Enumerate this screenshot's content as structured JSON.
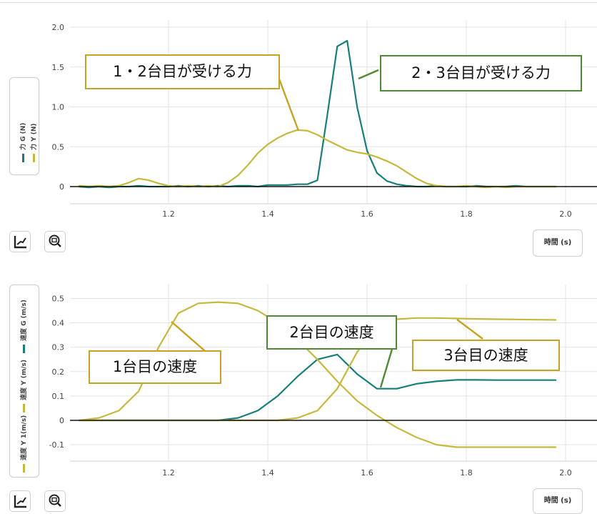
{
  "colors": {
    "teal": "#177f7a",
    "olive": "#c4b93b",
    "annot_gold": "#c8a321",
    "annot_green": "#4f8a36",
    "grid": "#e3e3e3",
    "zero_line": "#111111"
  },
  "icons": {
    "fit": "axis-fit-icon",
    "zoom": "zoom-icon"
  },
  "chart_data": [
    {
      "type": "line",
      "xlabel": "時間 (s)",
      "xlim": [
        1.02,
        2.02
      ],
      "ylim": [
        -0.03,
        2.0
      ],
      "x_ticks": [
        "1.2",
        "1.4",
        "1.6",
        "1.8",
        "2.0"
      ],
      "y_ticks": [
        "2.0",
        "1.5",
        "1.0",
        "0.5",
        "0"
      ],
      "legend": [
        "力 G (N)",
        "力 Y (N)"
      ],
      "grid": true,
      "series": [
        {
          "name": "力 G (N)",
          "color": "#177f7a",
          "x": [
            1.02,
            1.04,
            1.06,
            1.08,
            1.1,
            1.12,
            1.14,
            1.16,
            1.18,
            1.2,
            1.22,
            1.24,
            1.26,
            1.28,
            1.3,
            1.32,
            1.34,
            1.36,
            1.38,
            1.4,
            1.42,
            1.44,
            1.46,
            1.48,
            1.5,
            1.52,
            1.54,
            1.56,
            1.58,
            1.6,
            1.62,
            1.64,
            1.66,
            1.68,
            1.7,
            1.72,
            1.74,
            1.76,
            1.78,
            1.8,
            1.82,
            1.84,
            1.86,
            1.88,
            1.9,
            1.92,
            1.94,
            1.96,
            1.98
          ],
          "y": [
            0.0,
            -0.01,
            0.0,
            -0.01,
            0.0,
            0.0,
            0.01,
            0.0,
            0.0,
            0.0,
            0.01,
            0.0,
            0.01,
            0.0,
            0.01,
            0.0,
            0.01,
            0.01,
            0.0,
            0.02,
            0.02,
            0.02,
            0.03,
            0.03,
            0.08,
            0.9,
            1.76,
            1.83,
            1.0,
            0.45,
            0.17,
            0.07,
            0.03,
            0.01,
            0.0,
            0.0,
            0.01,
            0.0,
            0.0,
            0.0,
            0.01,
            0.0,
            0.0,
            0.0,
            0.01,
            0.0,
            0.0,
            0.0,
            0.0
          ]
        },
        {
          "name": "力 Y (N)",
          "color": "#c4b93b",
          "x": [
            1.02,
            1.04,
            1.06,
            1.08,
            1.1,
            1.12,
            1.14,
            1.16,
            1.18,
            1.2,
            1.22,
            1.24,
            1.26,
            1.28,
            1.3,
            1.32,
            1.34,
            1.36,
            1.38,
            1.4,
            1.42,
            1.44,
            1.46,
            1.48,
            1.5,
            1.52,
            1.54,
            1.56,
            1.58,
            1.6,
            1.62,
            1.64,
            1.66,
            1.68,
            1.7,
            1.72,
            1.74,
            1.76,
            1.78,
            1.8,
            1.82,
            1.84,
            1.86,
            1.88,
            1.9,
            1.92,
            1.94,
            1.96,
            1.98
          ],
          "y": [
            0.01,
            0.0,
            0.01,
            0.0,
            0.01,
            0.05,
            0.1,
            0.08,
            0.04,
            0.01,
            0.0,
            0.01,
            0.0,
            0.01,
            0.0,
            0.05,
            0.14,
            0.27,
            0.42,
            0.53,
            0.61,
            0.67,
            0.71,
            0.7,
            0.65,
            0.58,
            0.52,
            0.46,
            0.43,
            0.41,
            0.37,
            0.32,
            0.26,
            0.18,
            0.1,
            0.04,
            0.01,
            0.0,
            0.0,
            0.01,
            0.0,
            -0.01,
            0.0,
            -0.01,
            0.0,
            0.0,
            0.0,
            0.0,
            0.0
          ]
        }
      ],
      "annotations": [
        {
          "text": "1・2台目が受ける力",
          "color": "#c8a321"
        },
        {
          "text": "2・3台目が受ける力",
          "color": "#4f8a36"
        }
      ]
    },
    {
      "type": "line",
      "xlabel": "時間 (s)",
      "xlim": [
        1.02,
        2.02
      ],
      "ylim": [
        -0.16,
        0.52
      ],
      "x_ticks": [
        "1.2",
        "1.4",
        "1.6",
        "1.8",
        "2.0"
      ],
      "y_ticks": [
        "0.5",
        "0.4",
        "0.3",
        "0.2",
        "0.1",
        "0",
        "-0.1"
      ],
      "legend": [
        "速度 G (m/s)",
        "速度 Y (m/s)",
        "速度 Y 1(m/s)"
      ],
      "grid": true,
      "series": [
        {
          "name": "速度 G (m/s)",
          "color": "#177f7a",
          "x": [
            1.02,
            1.06,
            1.1,
            1.14,
            1.18,
            1.22,
            1.26,
            1.3,
            1.34,
            1.38,
            1.42,
            1.46,
            1.5,
            1.54,
            1.58,
            1.62,
            1.66,
            1.7,
            1.74,
            1.78,
            1.82,
            1.86,
            1.9,
            1.94,
            1.98
          ],
          "y": [
            0.0,
            0.0,
            0.0,
            0.0,
            0.0,
            0.0,
            0.0,
            0.0,
            0.01,
            0.04,
            0.1,
            0.18,
            0.25,
            0.27,
            0.19,
            0.13,
            0.13,
            0.15,
            0.16,
            0.166,
            0.166,
            0.165,
            0.165,
            0.165,
            0.165
          ]
        },
        {
          "name": "速度 Y (m/s)",
          "color": "#c4b93b",
          "x": [
            1.02,
            1.06,
            1.1,
            1.14,
            1.18,
            1.22,
            1.26,
            1.3,
            1.34,
            1.38,
            1.42,
            1.46,
            1.5,
            1.54,
            1.58,
            1.62,
            1.66,
            1.7,
            1.74,
            1.78,
            1.82,
            1.86,
            1.9,
            1.94,
            1.98
          ],
          "y": [
            0.0,
            0.0,
            0.0,
            0.0,
            0.0,
            0.0,
            0.0,
            0.0,
            0.0,
            0.0,
            0.0,
            0.01,
            0.04,
            0.13,
            0.28,
            0.39,
            0.415,
            0.42,
            0.42,
            0.418,
            0.416,
            0.415,
            0.414,
            0.413,
            0.412
          ]
        },
        {
          "name": "速度 Y 1(m/s)",
          "color": "#c4b93b",
          "x": [
            1.02,
            1.06,
            1.1,
            1.14,
            1.18,
            1.22,
            1.26,
            1.3,
            1.34,
            1.38,
            1.42,
            1.46,
            1.5,
            1.54,
            1.58,
            1.62,
            1.66,
            1.7,
            1.74,
            1.78,
            1.82,
            1.86,
            1.9,
            1.94,
            1.98
          ],
          "y": [
            0.0,
            0.01,
            0.04,
            0.12,
            0.3,
            0.44,
            0.48,
            0.485,
            0.48,
            0.45,
            0.4,
            0.33,
            0.25,
            0.16,
            0.08,
            0.02,
            -0.03,
            -0.07,
            -0.1,
            -0.11,
            -0.11,
            -0.11,
            -0.11,
            -0.11,
            -0.11
          ]
        }
      ],
      "annotations": [
        {
          "text": "1台目の速度",
          "color": "#c8a321"
        },
        {
          "text": "2台目の速度",
          "color": "#4f8a36"
        },
        {
          "text": "3台目の速度",
          "color": "#c8a321"
        }
      ]
    }
  ]
}
